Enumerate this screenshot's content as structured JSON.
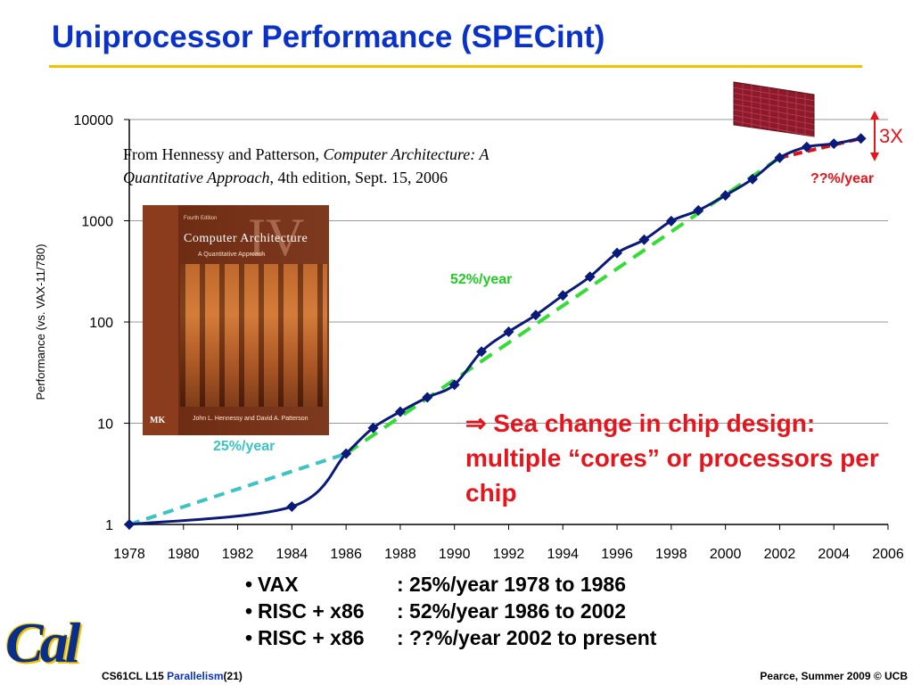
{
  "slide": {
    "title": "Uniprocessor Performance (SPECint)",
    "citation": {
      "prefix": "From Hennessy and Patterson, ",
      "book_italic": "Computer Architecture: A Quantitative Approach",
      "suffix": ", 4th edition, Sept. 15, 2006"
    },
    "book_cover": {
      "edition": "Fourth Edition",
      "title": "Computer Architecture",
      "subtitle": "A Quantitative Approach",
      "roman": "IV",
      "authors": "John L. Hennessy and David A. Patterson",
      "publisher": "MK"
    },
    "callout": "⇒ Sea change in chip design: multiple “cores” or processors per chip",
    "bullets": [
      {
        "label": "VAX",
        "text": ": 25%/year 1978 to 1986"
      },
      {
        "label": "RISC + x86",
        "text": ": 52%/year 1986 to 2002"
      },
      {
        "label": "RISC + x86",
        "text": ": ??%/year 2002 to present"
      }
    ],
    "footer_left": {
      "course": "CS61CL L15 ",
      "topic": "Parallelism",
      "page": "(21)"
    },
    "footer_right": "Pearce, Summer 2009 © UCB",
    "logo_text": "Cal"
  },
  "chart_data": {
    "type": "line",
    "ylabel": "Performance (vs. VAX-11/780)",
    "y_scale": "log",
    "ylim": [
      1,
      10000
    ],
    "xlim": [
      1978,
      2006
    ],
    "y_ticks": [
      "1",
      "10",
      "100",
      "1000",
      "10000"
    ],
    "x_ticks": [
      "1978",
      "1980",
      "1982",
      "1984",
      "1986",
      "1988",
      "1990",
      "1992",
      "1994",
      "1996",
      "1998",
      "2000",
      "2002",
      "2004",
      "2006"
    ],
    "grid": "horizontal",
    "series": [
      {
        "x": [
          1978,
          1984,
          1986,
          1987,
          1988,
          1989,
          1990,
          1991,
          1992,
          1993,
          1994,
          1995,
          1996,
          1997,
          1998,
          1999,
          2000,
          2001,
          2002,
          2003,
          2004,
          2005
        ],
        "y": [
          1,
          1.5,
          5,
          9,
          13,
          18,
          24,
          51,
          80,
          117,
          183,
          280,
          481,
          649,
          993,
          1267,
          1779,
          2584,
          4195,
          5364,
          5764,
          6505
        ],
        "color": "#0a1a7a"
      }
    ],
    "trend_lines": [
      {
        "label": "25%/year",
        "x": [
          1978,
          1986
        ],
        "y": [
          1,
          5
        ],
        "color": "#3cc4c4"
      },
      {
        "label": "52%/year",
        "x": [
          1986,
          2002
        ],
        "y": [
          5,
          4195
        ],
        "color": "#33dd33"
      },
      {
        "label": "??%/year",
        "x": [
          2002,
          2005
        ],
        "y": [
          4195,
          6505
        ],
        "color": "#dd1111"
      }
    ],
    "annotations": [
      {
        "text": "25%/year",
        "color": "#3cc4c4"
      },
      {
        "text": "52%/year",
        "color": "#22cc22"
      },
      {
        "text": "??%/year",
        "color": "#e8141c"
      },
      {
        "text": "3X",
        "color": "#e8141c"
      }
    ],
    "colors": {
      "series": "#0a1a7a",
      "title": "#0b32c8",
      "accent": "#f2c200",
      "callout": "#e8141c"
    }
  }
}
